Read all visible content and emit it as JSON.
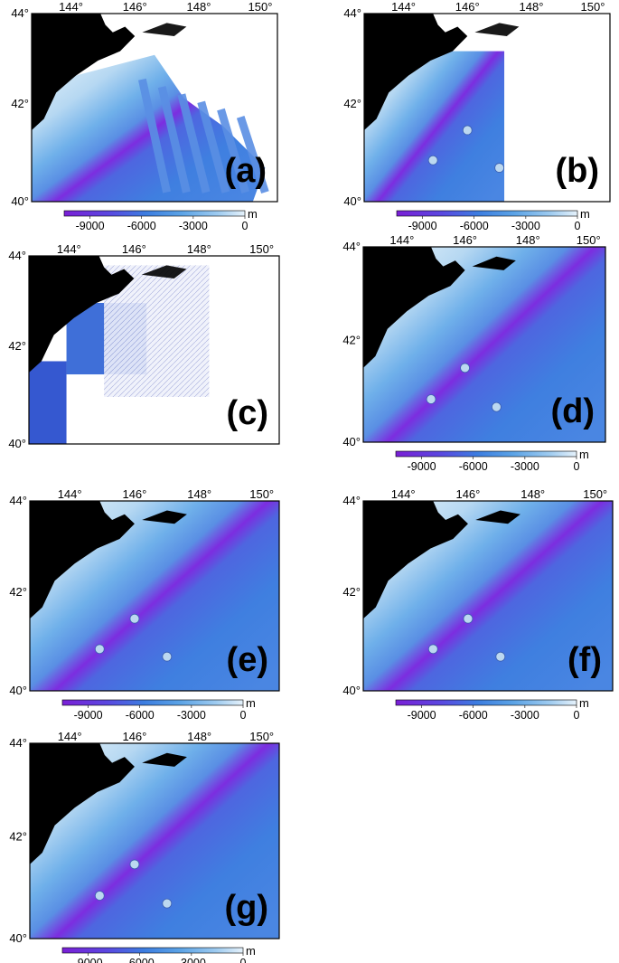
{
  "figure": {
    "panels": [
      {
        "id": "a",
        "label": "(a)",
        "coverage": "swath",
        "colorbar": true
      },
      {
        "id": "b",
        "label": "(b)",
        "coverage": "west",
        "colorbar": true
      },
      {
        "id": "c",
        "label": "(c)",
        "coverage": "patches",
        "colorbar": false
      },
      {
        "id": "d",
        "label": "(d)",
        "coverage": "full",
        "colorbar": true
      },
      {
        "id": "e",
        "label": "(e)",
        "coverage": "full",
        "colorbar": true
      },
      {
        "id": "f",
        "label": "(f)",
        "coverage": "full",
        "colorbar": true
      },
      {
        "id": "g",
        "label": "(g)",
        "coverage": "full",
        "colorbar": true
      }
    ],
    "lon_ticks": [
      "144°",
      "146°",
      "148°",
      "150°"
    ],
    "lat_ticks": [
      "44°",
      "42°",
      "40°"
    ],
    "colorbar": {
      "ticks": [
        "-9000",
        "-6000",
        "-3000",
        "0"
      ],
      "unit": "m",
      "min": -10500,
      "max": 0,
      "colors": [
        "#7a1fd6",
        "#5a48e0",
        "#3c7de0",
        "#5ba3e6",
        "#9ecbf0",
        "#e6f2fb"
      ]
    },
    "colors": {
      "land": "#000000",
      "trench": "#7c2de0",
      "deep": "#3f7fe0",
      "slope": "#6fb0ea",
      "shelf": "#d4e8f6"
    }
  }
}
